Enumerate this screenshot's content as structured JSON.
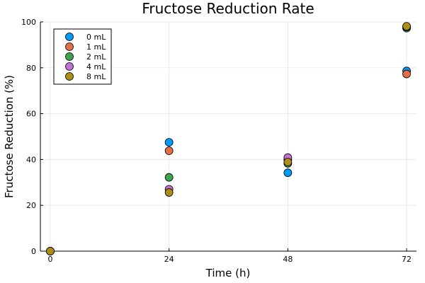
{
  "chart_data": {
    "type": "scatter",
    "title": "Fructose Reduction Rate",
    "xlabel": "Time (h)",
    "ylabel": "Fructose Reduction (%)",
    "xlim": [
      -2,
      74
    ],
    "ylim": [
      0,
      100
    ],
    "xticks": [
      0,
      24,
      48,
      72
    ],
    "yticks": [
      0,
      20,
      40,
      60,
      80,
      100
    ],
    "grid": true,
    "legend_position": "top-left",
    "series": [
      {
        "name": "0 mL",
        "color": "#009af9",
        "x": [
          0,
          24,
          48,
          72
        ],
        "y": [
          0,
          47.5,
          34.2,
          78.6
        ]
      },
      {
        "name": "1 mL",
        "color": "#e26f46",
        "x": [
          0,
          24,
          48,
          72
        ],
        "y": [
          0,
          43.8,
          39.8,
          77.3
        ]
      },
      {
        "name": "2 mL",
        "color": "#3da44d",
        "x": [
          0,
          24,
          48,
          72
        ],
        "y": [
          0,
          32.2,
          38.3,
          97.3
        ]
      },
      {
        "name": "4 mL",
        "color": "#c371d2",
        "x": [
          0,
          24,
          48,
          72
        ],
        "y": [
          0,
          27.0,
          40.8,
          97.8
        ]
      },
      {
        "name": "8 mL",
        "color": "#ac8e18",
        "x": [
          0,
          24,
          48,
          72
        ],
        "y": [
          0,
          25.6,
          38.9,
          98.1
        ]
      }
    ]
  }
}
